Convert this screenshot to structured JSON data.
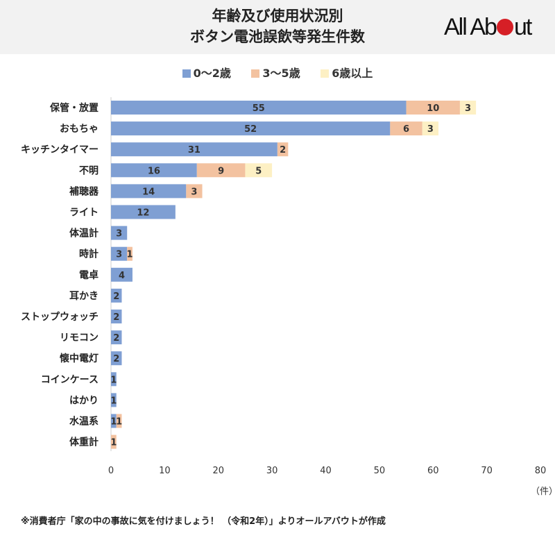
{
  "header": {
    "title_line1": "年齢及び使用状況別",
    "title_line2": "ボタン電池誤飲等発生件数",
    "logo_text": "All About"
  },
  "footnote": "※消費者庁「家の中の事故に気を付けましょう！ （令和2年）」よりオールアバウトが作成",
  "chart_data": {
    "type": "bar",
    "orientation": "horizontal",
    "stacked": true,
    "title": "年齢及び使用状況別 ボタン電池誤飲等発生件数",
    "categories": [
      "保管・放置",
      "おもちゃ",
      "キッチンタイマー",
      "不明",
      "補聴器",
      "ライト",
      "体温計",
      "時計",
      "電卓",
      "耳かき",
      "ストップウォッチ",
      "リモコン",
      "懐中電灯",
      "コインケース",
      "はかり",
      "水温系",
      "体重計"
    ],
    "series": [
      {
        "name": "0〜2歳",
        "color": "#7f9fd3",
        "values": [
          55,
          52,
          31,
          16,
          14,
          12,
          3,
          3,
          4,
          2,
          2,
          2,
          2,
          1,
          1,
          1,
          0
        ]
      },
      {
        "name": "3〜5歳",
        "color": "#f3c2a0",
        "values": [
          10,
          6,
          2,
          9,
          3,
          0,
          0,
          1,
          0,
          0,
          0,
          0,
          0,
          0,
          0,
          1,
          1
        ]
      },
      {
        "name": "6歳以上",
        "color": "#fdf0c4",
        "values": [
          3,
          3,
          0,
          5,
          0,
          0,
          0,
          0,
          0,
          0,
          0,
          0,
          0,
          0,
          0,
          0,
          0
        ]
      }
    ],
    "xlim": [
      0,
      80
    ],
    "xticks": [
      "0",
      "10",
      "20",
      "30",
      "40",
      "50",
      "60",
      "70",
      "80"
    ],
    "xunit": "（件）",
    "legend": "top",
    "grid": false
  }
}
